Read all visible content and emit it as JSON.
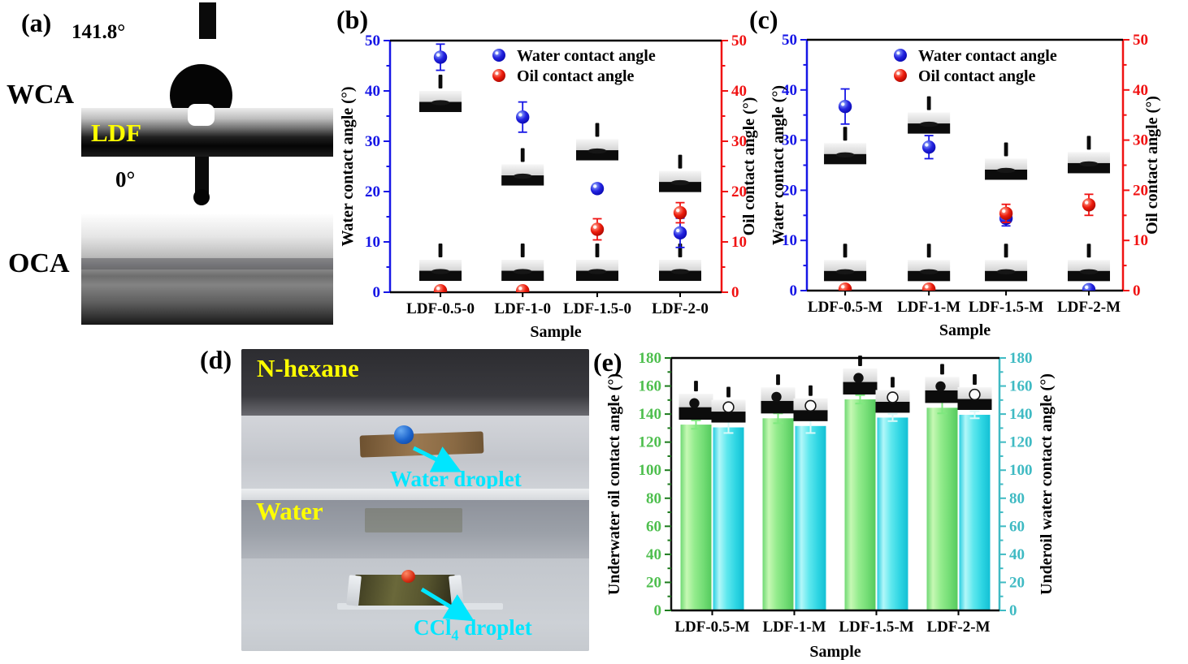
{
  "panels": {
    "a": {
      "label": "(a)",
      "wca_value": "141.8°",
      "wca_label": "WCA",
      "sample_label": "LDF",
      "oca_value": "0°",
      "oca_label": "OCA"
    },
    "b": {
      "label": "(b)"
    },
    "c": {
      "label": "(c)"
    },
    "d": {
      "label": "(d)",
      "top_liquid": "N-hexane",
      "bottom_liquid": "Water",
      "water_droplet_label": "Water droplet",
      "ccl4_prefix": "CCl",
      "ccl4_sub": "4",
      "ccl4_suffix": " droplet"
    },
    "e": {
      "label": "(e)"
    }
  },
  "colors": {
    "water_blue": "#1616e6",
    "oil_red": "#f01212",
    "bar_green": "#8ce689",
    "bar_cyan": "#3fdde9",
    "axis_green": "#4fbf4f",
    "axis_teal": "#3fbac3",
    "annotation_cyan": "#00e6ff",
    "annotation_yellow": "#ffff00"
  },
  "chart_data": [
    {
      "id": "b",
      "type": "scatter",
      "title": "",
      "xlabel": "Sample",
      "ylabel_left": "Water contact angle (°)",
      "ylabel_right": "Oil contact angle (°)",
      "categories": [
        "LDF-0.5-0",
        "LDF-1-0",
        "LDF-1.5-0",
        "LDF-2-0"
      ],
      "ylim": [
        0,
        50
      ],
      "ytick_step": 10,
      "yminor_step": 5,
      "grid": false,
      "legend_position": "top-center",
      "series": [
        {
          "name": "Water contact angle",
          "axis": "left",
          "color": "#1616e6",
          "values": [
            46.7,
            34.8,
            20.6,
            11.8
          ],
          "errors": [
            2.6,
            3.0,
            0.9,
            2.9
          ]
        },
        {
          "name": "Oil contact angle",
          "axis": "right",
          "color": "#f01212",
          "values": [
            0.3,
            0.3,
            12.5,
            15.8
          ],
          "errors": [
            0,
            0,
            2.1,
            2.0
          ]
        }
      ],
      "inset_photo_centers_top": [
        37.9,
        23.3,
        28.3,
        22.0
      ],
      "inset_photo_center_bottom": 4.35
    },
    {
      "id": "c",
      "type": "scatter",
      "title": "",
      "xlabel": "Sample",
      "ylabel_left": "Water contact angle (°)",
      "ylabel_right": "Oil contact angle (°)",
      "categories": [
        "LDF-0.5-M",
        "LDF-1-M",
        "LDF-1.5-M",
        "LDF-2-M"
      ],
      "ylim": [
        0,
        50
      ],
      "ytick_step": 10,
      "yminor_step": 5,
      "grid": false,
      "legend_position": "top-center",
      "series": [
        {
          "name": "Water contact angle",
          "axis": "left",
          "color": "#1616e6",
          "values": [
            36.7,
            28.6,
            14.4,
            0.2
          ],
          "errors": [
            3.5,
            2.3,
            1.5,
            0
          ]
        },
        {
          "name": "Oil contact angle",
          "axis": "right",
          "color": "#f01212",
          "values": [
            0.3,
            0.3,
            15.4,
            17.1
          ],
          "errors": [
            0,
            0,
            1.8,
            2.1
          ]
        }
      ],
      "inset_photo_centers_top": [
        27.3,
        33.4,
        24.2,
        25.5
      ],
      "inset_photo_center_bottom": 4.0
    },
    {
      "id": "e",
      "type": "bar",
      "title": "",
      "xlabel": "Sample",
      "ylabel_left": "Underwater oil contact angle (°)",
      "ylabel_right": "Underoil water contact angle (°)",
      "categories": [
        "LDF-0.5-M",
        "LDF-1-M",
        "LDF-1.5-M",
        "LDF-2-M"
      ],
      "ylim": [
        0,
        180
      ],
      "ytick_step": 20,
      "yminor_step": 10,
      "grid": false,
      "legend_position": "none",
      "series": [
        {
          "name": "Underwater oil contact angle",
          "axis": "left",
          "color": "#8ce689",
          "values": [
            132.5,
            137.0,
            150.5,
            144.5
          ],
          "errors": [
            3.0,
            3.5,
            3.0,
            4.0
          ]
        },
        {
          "name": "Underoil water contact angle",
          "axis": "right",
          "color": "#3fdde9",
          "values": [
            130.5,
            131.5,
            137.5,
            139.5
          ],
          "errors": [
            4.0,
            5.0,
            2.5,
            2.5
          ]
        }
      ]
    }
  ]
}
